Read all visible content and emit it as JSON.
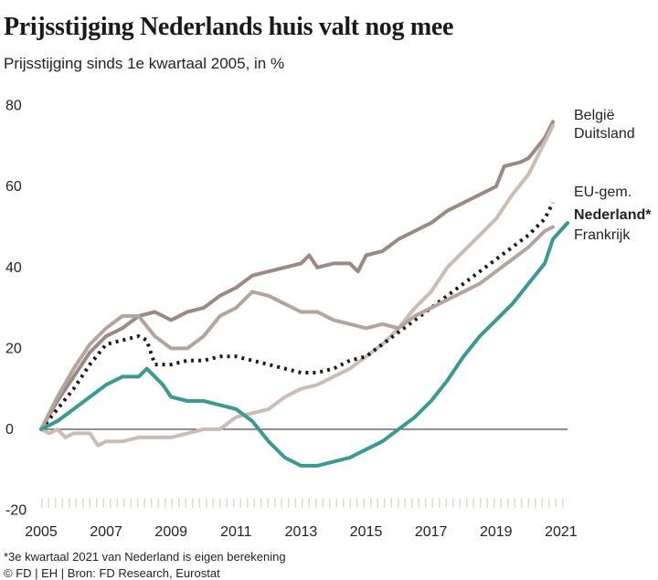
{
  "title": "Prijsstijging Nederlands huis valt nog mee",
  "subtitle": "Prijsstijging sinds 1e kwartaal 2005, in %",
  "footnote": "*3e kwartaal 2021 van Nederland is eigen berekening",
  "credits": "© FD | EH | Bron: FD Research, Eurostat",
  "chart_data": {
    "type": "line",
    "xlim": [
      2005,
      2021.6
    ],
    "ylim": [
      -20,
      80
    ],
    "x_ticks": [
      "2005",
      "2007",
      "2009",
      "2011",
      "2013",
      "2015",
      "2017",
      "2019",
      "2021"
    ],
    "y_ticks": [
      "80",
      "60",
      "40",
      "20",
      "0",
      "-20"
    ],
    "grid": false,
    "legend_position": "right",
    "series": [
      {
        "name": "België",
        "color": "#9b8a84",
        "points": [
          [
            2005,
            0
          ],
          [
            2005.5,
            7
          ],
          [
            2006,
            13
          ],
          [
            2006.5,
            19
          ],
          [
            2007,
            23
          ],
          [
            2007.5,
            25
          ],
          [
            2008,
            28
          ],
          [
            2008.5,
            29
          ],
          [
            2009,
            27
          ],
          [
            2009.5,
            29
          ],
          [
            2010,
            30
          ],
          [
            2010.5,
            33
          ],
          [
            2011,
            35
          ],
          [
            2011.5,
            38
          ],
          [
            2012,
            39
          ],
          [
            2012.5,
            40
          ],
          [
            2013,
            41
          ],
          [
            2013.25,
            43
          ],
          [
            2013.5,
            40
          ],
          [
            2014,
            41
          ],
          [
            2014.5,
            41
          ],
          [
            2014.75,
            39
          ],
          [
            2015,
            43
          ],
          [
            2015.5,
            44
          ],
          [
            2016,
            47
          ],
          [
            2016.5,
            49
          ],
          [
            2017,
            51
          ],
          [
            2017.5,
            54
          ],
          [
            2018,
            56
          ],
          [
            2018.5,
            58
          ],
          [
            2019,
            60
          ],
          [
            2019.25,
            65
          ],
          [
            2019.75,
            66
          ],
          [
            2020,
            67
          ],
          [
            2020.5,
            72
          ],
          [
            2020.75,
            76
          ]
        ]
      },
      {
        "name": "Duitsland",
        "color": "#c9bdb5",
        "points": [
          [
            2005,
            0
          ],
          [
            2005.25,
            -1
          ],
          [
            2005.5,
            0
          ],
          [
            2005.75,
            -2
          ],
          [
            2006,
            -1
          ],
          [
            2006.5,
            -1
          ],
          [
            2006.75,
            -4
          ],
          [
            2007,
            -3
          ],
          [
            2007.5,
            -3
          ],
          [
            2008,
            -2
          ],
          [
            2008.5,
            -2
          ],
          [
            2009,
            -2
          ],
          [
            2009.5,
            -1
          ],
          [
            2010,
            0
          ],
          [
            2010.5,
            0
          ],
          [
            2011,
            3
          ],
          [
            2011.5,
            4
          ],
          [
            2012,
            5
          ],
          [
            2012.5,
            8
          ],
          [
            2013,
            10
          ],
          [
            2013.5,
            11
          ],
          [
            2014,
            13
          ],
          [
            2014.5,
            15
          ],
          [
            2015,
            18
          ],
          [
            2015.5,
            21
          ],
          [
            2016,
            25
          ],
          [
            2016.5,
            30
          ],
          [
            2017,
            34
          ],
          [
            2017.5,
            40
          ],
          [
            2018,
            44
          ],
          [
            2018.5,
            48
          ],
          [
            2019,
            52
          ],
          [
            2019.5,
            58
          ],
          [
            2020,
            63
          ],
          [
            2020.5,
            71
          ],
          [
            2020.75,
            75
          ]
        ]
      },
      {
        "name": "EU-gem.",
        "color": "#1a1a1a",
        "dashed": true,
        "points": [
          [
            2005,
            0
          ],
          [
            2005.5,
            5
          ],
          [
            2006,
            10
          ],
          [
            2006.5,
            16
          ],
          [
            2007,
            21
          ],
          [
            2007.5,
            22
          ],
          [
            2008,
            23
          ],
          [
            2008.25,
            22
          ],
          [
            2008.5,
            16
          ],
          [
            2009,
            16
          ],
          [
            2009.5,
            17
          ],
          [
            2010,
            17
          ],
          [
            2010.5,
            18
          ],
          [
            2011,
            18
          ],
          [
            2011.5,
            17
          ],
          [
            2012,
            16
          ],
          [
            2012.5,
            15
          ],
          [
            2013,
            14
          ],
          [
            2013.5,
            14
          ],
          [
            2014,
            15
          ],
          [
            2014.5,
            17
          ],
          [
            2015,
            18
          ],
          [
            2015.5,
            21
          ],
          [
            2016,
            24
          ],
          [
            2016.5,
            27
          ],
          [
            2017,
            30
          ],
          [
            2017.5,
            33
          ],
          [
            2018,
            36
          ],
          [
            2018.5,
            39
          ],
          [
            2019,
            42
          ],
          [
            2019.5,
            45
          ],
          [
            2020,
            48
          ],
          [
            2020.5,
            52
          ],
          [
            2020.75,
            56
          ]
        ]
      },
      {
        "name": "Nederland*",
        "color": "#3a9993",
        "highlight": true,
        "points": [
          [
            2005,
            0
          ],
          [
            2005.5,
            2
          ],
          [
            2006,
            5
          ],
          [
            2006.5,
            8
          ],
          [
            2007,
            11
          ],
          [
            2007.5,
            13
          ],
          [
            2008,
            13
          ],
          [
            2008.25,
            15
          ],
          [
            2008.75,
            11
          ],
          [
            2009,
            8
          ],
          [
            2009.5,
            7
          ],
          [
            2010,
            7
          ],
          [
            2010.5,
            6
          ],
          [
            2011,
            5
          ],
          [
            2011.5,
            2
          ],
          [
            2012,
            -3
          ],
          [
            2012.5,
            -7
          ],
          [
            2013,
            -9
          ],
          [
            2013.5,
            -9
          ],
          [
            2014,
            -8
          ],
          [
            2014.5,
            -7
          ],
          [
            2015,
            -5
          ],
          [
            2015.5,
            -3
          ],
          [
            2016,
            0
          ],
          [
            2016.5,
            3
          ],
          [
            2017,
            7
          ],
          [
            2017.5,
            12
          ],
          [
            2018,
            18
          ],
          [
            2018.5,
            23
          ],
          [
            2019,
            27
          ],
          [
            2019.5,
            31
          ],
          [
            2020,
            36
          ],
          [
            2020.5,
            41
          ],
          [
            2020.75,
            47
          ],
          [
            2021.2,
            51
          ]
        ]
      },
      {
        "name": "Frankrijk",
        "color": "#b3a59e",
        "points": [
          [
            2005,
            0
          ],
          [
            2005.5,
            8
          ],
          [
            2006,
            15
          ],
          [
            2006.5,
            21
          ],
          [
            2007,
            25
          ],
          [
            2007.5,
            28
          ],
          [
            2008,
            28
          ],
          [
            2008.5,
            23
          ],
          [
            2009,
            20
          ],
          [
            2009.5,
            20
          ],
          [
            2010,
            23
          ],
          [
            2010.5,
            28
          ],
          [
            2011,
            30
          ],
          [
            2011.5,
            34
          ],
          [
            2012,
            33
          ],
          [
            2012.5,
            31
          ],
          [
            2013,
            29
          ],
          [
            2013.5,
            29
          ],
          [
            2014,
            27
          ],
          [
            2014.5,
            26
          ],
          [
            2015,
            25
          ],
          [
            2015.5,
            26
          ],
          [
            2016,
            25
          ],
          [
            2016.5,
            28
          ],
          [
            2017,
            30
          ],
          [
            2017.5,
            32
          ],
          [
            2018,
            34
          ],
          [
            2018.5,
            36
          ],
          [
            2019,
            39
          ],
          [
            2019.5,
            42
          ],
          [
            2020,
            45
          ],
          [
            2020.5,
            49
          ],
          [
            2020.75,
            50
          ]
        ]
      }
    ]
  }
}
